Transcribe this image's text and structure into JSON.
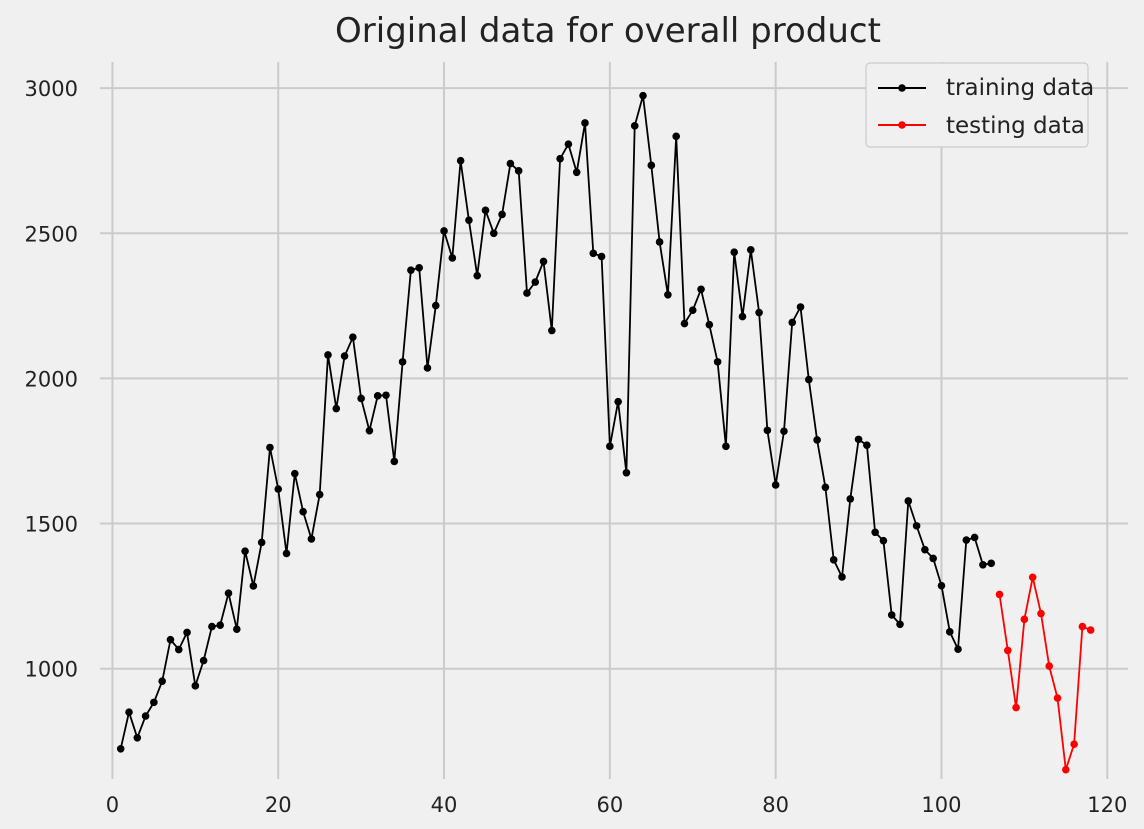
{
  "chart_data": {
    "type": "line",
    "title": "Original data for overall product",
    "xlabel": "",
    "ylabel": "",
    "xlim": [
      -1.5,
      122.5
    ],
    "ylim": [
      620,
      3090
    ],
    "xticks": [
      0,
      20,
      40,
      60,
      80,
      100,
      120
    ],
    "yticks": [
      1000,
      1500,
      2000,
      2500,
      3000
    ],
    "grid": true,
    "legend_position": "top-right",
    "colors": {
      "background": "#f0f0f0",
      "grid": "#cbcbcb",
      "training": "#000000",
      "testing": "#ff0000"
    },
    "series": [
      {
        "name": "training data",
        "color": "#000000",
        "x": [
          1,
          2,
          3,
          4,
          5,
          6,
          7,
          8,
          9,
          10,
          11,
          12,
          13,
          14,
          15,
          16,
          17,
          18,
          19,
          20,
          21,
          22,
          23,
          24,
          25,
          26,
          27,
          28,
          29,
          30,
          31,
          32,
          33,
          34,
          35,
          36,
          37,
          38,
          39,
          40,
          41,
          42,
          43,
          44,
          45,
          46,
          47,
          48,
          49,
          50,
          51,
          52,
          53,
          54,
          55,
          56,
          57,
          58,
          59,
          60,
          61,
          62,
          63,
          64,
          65,
          66,
          67,
          68,
          69,
          70,
          71,
          72,
          73,
          74,
          75,
          76,
          77,
          78,
          79,
          80,
          81,
          82,
          83,
          84,
          85,
          86,
          87,
          88,
          89,
          90,
          91,
          92,
          93,
          94,
          95,
          96,
          97,
          98,
          99,
          100,
          101,
          102,
          103,
          104,
          105,
          106
        ],
        "values": [
          724,
          850,
          762,
          837,
          884,
          957,
          1100,
          1066,
          1125,
          941,
          1028,
          1145,
          1150,
          1260,
          1136,
          1405,
          1285,
          1435,
          1762,
          1619,
          1397,
          1672,
          1541,
          1447,
          1600,
          2081,
          1896,
          2077,
          2142,
          1931,
          1820,
          1940,
          1942,
          1714,
          2057,
          2373,
          2381,
          2036,
          2251,
          2508,
          2415,
          2750,
          2545,
          2354,
          2579,
          2500,
          2565,
          2740,
          2715,
          2294,
          2332,
          2403,
          2165,
          2757,
          2807,
          2710,
          2880,
          2431,
          2420,
          1766,
          1920,
          1675,
          2870,
          2974,
          2734,
          2470,
          2288,
          2834,
          2189,
          2235,
          2307,
          2185,
          2057,
          1766,
          2435,
          2213,
          2443,
          2227,
          1821,
          1633,
          1818,
          2193,
          2246,
          1996,
          1788,
          1625,
          1375,
          1316,
          1585,
          1790,
          1770,
          1470,
          1441,
          1185,
          1153,
          1578,
          1492,
          1410,
          1380,
          1286,
          1127,
          1067,
          1443,
          1452,
          1358,
          1363
        ]
      },
      {
        "name": "testing data",
        "color": "#ff0000",
        "x": [
          107,
          108,
          109,
          110,
          111,
          112,
          113,
          114,
          115,
          116,
          117,
          118
        ],
        "values": [
          1256,
          1063,
          866,
          1170,
          1315,
          1190,
          1009,
          899,
          652,
          740,
          1145,
          1133
        ]
      }
    ]
  }
}
